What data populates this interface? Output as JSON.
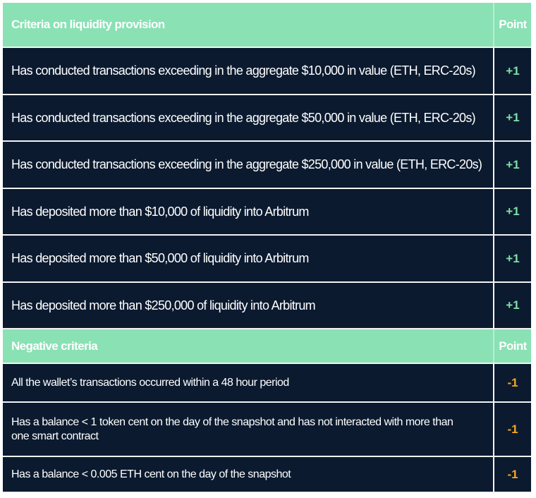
{
  "section1": {
    "header": {
      "criteria_label": "Criteria on liquidity provision",
      "point_label": "Point"
    },
    "rows": [
      {
        "text": "Has conducted transactions exceeding in the aggregate $10,000 in value (ETH, ERC-20s)",
        "point": "+1"
      },
      {
        "text": "Has conducted transactions exceeding in the aggregate $50,000 in value (ETH,  ERC-20s)",
        "point": "+1"
      },
      {
        "text": "Has conducted transactions exceeding in the aggregate $250,000 in value (ETH, ERC-20s)",
        "point": "+1"
      },
      {
        "text": "Has deposited more than $10,000 of liquidity into Arbitrum",
        "point": "+1"
      },
      {
        "text": "Has deposited more than $50,000 of liquidity into Arbitrum",
        "point": "+1"
      },
      {
        "text": "Has deposited more than $250,000 of liquidity into Arbitrum",
        "point": "+1"
      }
    ]
  },
  "section2": {
    "header": {
      "criteria_label": "Negative criteria",
      "point_label": "Point"
    },
    "rows": [
      {
        "text": "All the wallet’s transactions occurred within a 48 hour period",
        "point": "-1"
      },
      {
        "text": "Has a balance < 1 token cent on the day of the snapshot and has not interacted with more than one smart contract",
        "point": "-1"
      },
      {
        "text": "Has a balance < 0.005 ETH cent on the day of the snapshot",
        "point": "-1"
      }
    ]
  },
  "colors": {
    "header_bg": "#89e1b4",
    "row_bg": "#0b1a2f",
    "positive_point": "#7fe0a6",
    "negative_point": "#f5a623"
  }
}
